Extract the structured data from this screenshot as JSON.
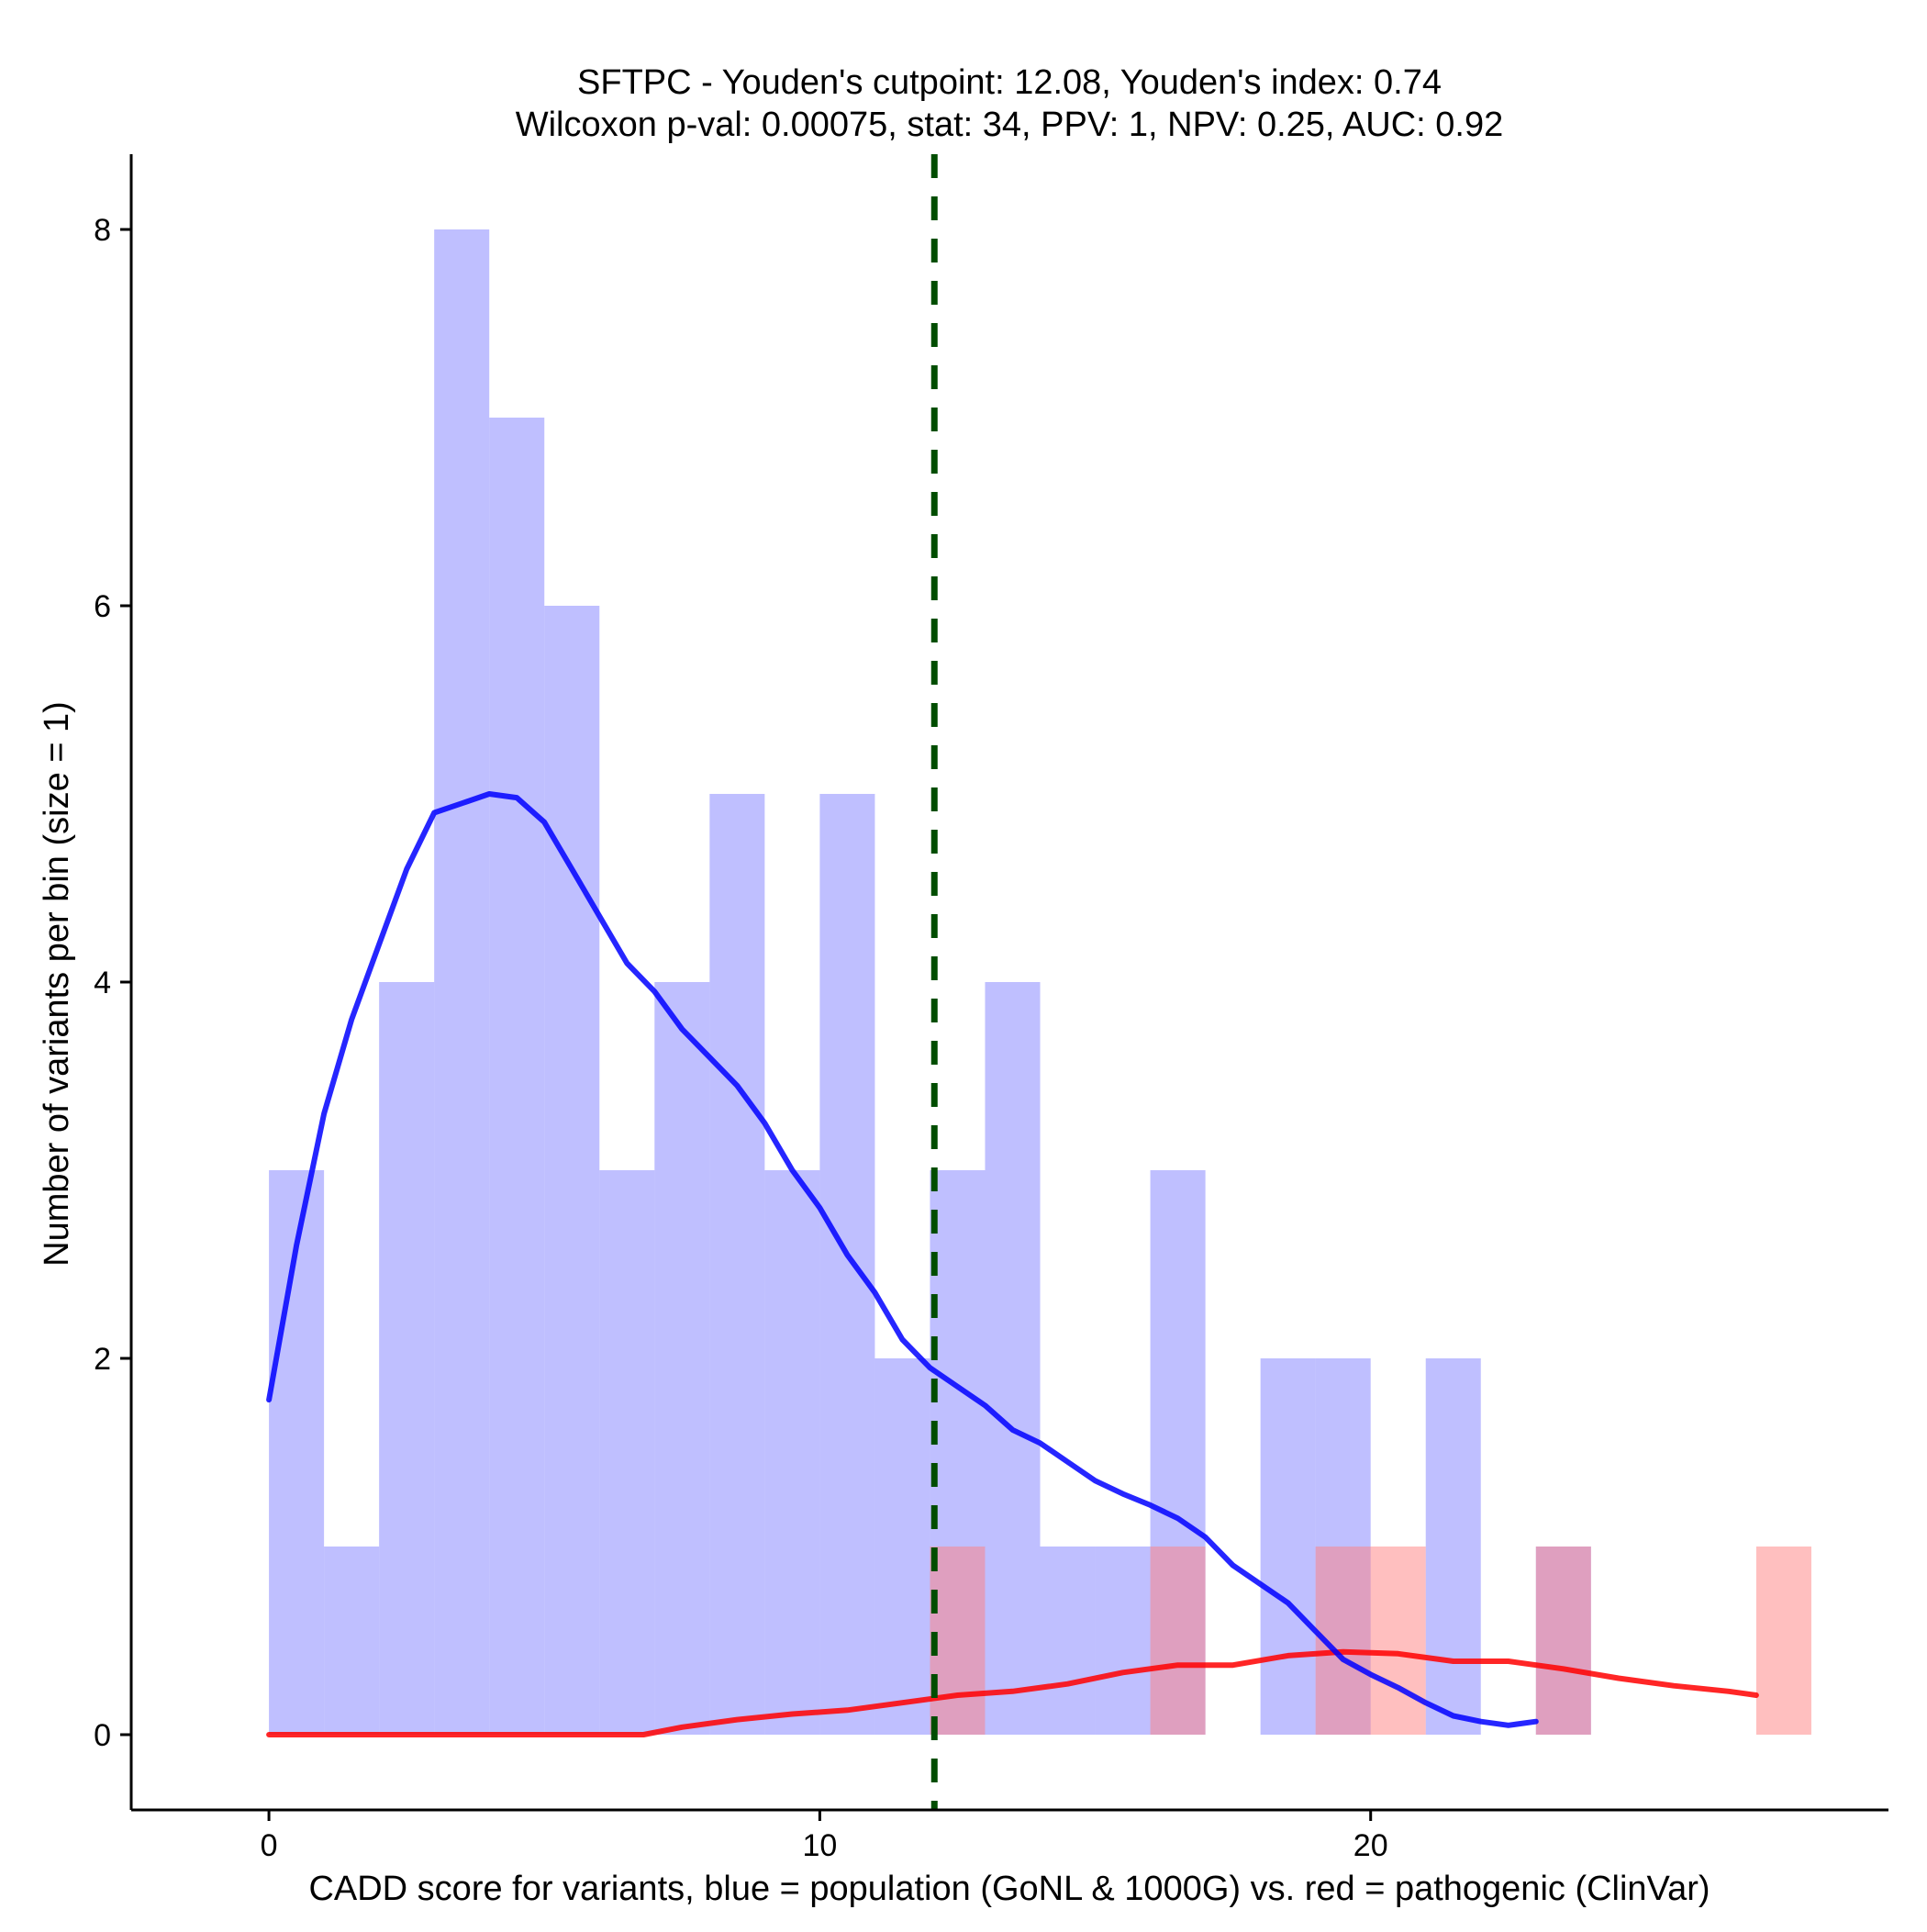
{
  "chart_data": {
    "type": "histogram",
    "title": "SFTPC - Youden's cutpoint: 12.08, Youden's index: 0.74",
    "subtitle": "Wilcoxon p-val: 0.00075, stat: 34, PPV: 1, NPV: 0.25, AUC: 0.92",
    "xlabel": "CADD score for variants, blue = population (GoNL & 1000G) vs. red = pathogenic (ClinVar)",
    "ylabel": "Number of variants per bin (size = 1)",
    "xlim": [
      -2.5,
      29.4
    ],
    "ylim": [
      -0.4,
      8.4
    ],
    "x_ticks": [
      {
        "value": 0,
        "label": "0"
      },
      {
        "value": 10,
        "label": "10"
      },
      {
        "value": 20,
        "label": "20"
      }
    ],
    "y_ticks": [
      {
        "value": 0,
        "label": "0"
      },
      {
        "value": 2,
        "label": "2"
      },
      {
        "value": 4,
        "label": "4"
      },
      {
        "value": 6,
        "label": "6"
      },
      {
        "value": 8,
        "label": "8"
      }
    ],
    "bin_width": 1,
    "series": [
      {
        "name": "population (GoNL & 1000G)",
        "color": "#8080ff",
        "bins": [
          {
            "start": 0,
            "count": 3
          },
          {
            "start": 1,
            "count": 1
          },
          {
            "start": 2,
            "count": 4
          },
          {
            "start": 3,
            "count": 8
          },
          {
            "start": 4,
            "count": 7
          },
          {
            "start": 5,
            "count": 6
          },
          {
            "start": 6,
            "count": 3
          },
          {
            "start": 7,
            "count": 4
          },
          {
            "start": 8,
            "count": 5
          },
          {
            "start": 9,
            "count": 3
          },
          {
            "start": 10,
            "count": 5
          },
          {
            "start": 11,
            "count": 2
          },
          {
            "start": 12,
            "count": 3
          },
          {
            "start": 13,
            "count": 4
          },
          {
            "start": 14,
            "count": 1
          },
          {
            "start": 15,
            "count": 1
          },
          {
            "start": 16,
            "count": 3
          },
          {
            "start": 18,
            "count": 2
          },
          {
            "start": 19,
            "count": 2
          },
          {
            "start": 21,
            "count": 2
          },
          {
            "start": 23,
            "count": 1
          }
        ],
        "density_curve": [
          [
            0,
            1.78
          ],
          [
            0.5,
            2.6
          ],
          [
            1,
            3.3
          ],
          [
            1.5,
            3.8
          ],
          [
            2,
            4.2
          ],
          [
            2.5,
            4.6
          ],
          [
            3,
            4.9
          ],
          [
            3.5,
            4.95
          ],
          [
            4,
            5.0
          ],
          [
            4.5,
            4.98
          ],
          [
            5,
            4.85
          ],
          [
            5.5,
            4.6
          ],
          [
            6,
            4.35
          ],
          [
            6.5,
            4.1
          ],
          [
            7,
            3.95
          ],
          [
            7.5,
            3.75
          ],
          [
            8,
            3.6
          ],
          [
            8.5,
            3.45
          ],
          [
            9,
            3.25
          ],
          [
            9.5,
            3.0
          ],
          [
            10,
            2.8
          ],
          [
            10.5,
            2.55
          ],
          [
            11,
            2.35
          ],
          [
            11.5,
            2.1
          ],
          [
            12,
            1.95
          ],
          [
            12.5,
            1.85
          ],
          [
            13,
            1.75
          ],
          [
            13.5,
            1.62
          ],
          [
            14,
            1.55
          ],
          [
            14.5,
            1.45
          ],
          [
            15,
            1.35
          ],
          [
            15.5,
            1.28
          ],
          [
            16,
            1.22
          ],
          [
            16.5,
            1.15
          ],
          [
            17,
            1.05
          ],
          [
            17.5,
            0.9
          ],
          [
            18,
            0.8
          ],
          [
            18.5,
            0.7
          ],
          [
            19,
            0.55
          ],
          [
            19.5,
            0.4
          ],
          [
            20,
            0.32
          ],
          [
            20.5,
            0.25
          ],
          [
            21,
            0.17
          ],
          [
            21.5,
            0.1
          ],
          [
            22,
            0.07
          ],
          [
            22.5,
            0.05
          ],
          [
            23,
            0.07
          ]
        ]
      },
      {
        "name": "pathogenic (ClinVar)",
        "color": "#ff8080",
        "bins": [
          {
            "start": 12,
            "count": 1
          },
          {
            "start": 16,
            "count": 1
          },
          {
            "start": 19,
            "count": 1
          },
          {
            "start": 20,
            "count": 1
          },
          {
            "start": 23,
            "count": 1
          },
          {
            "start": 27,
            "count": 1
          }
        ],
        "density_curve": [
          [
            0,
            0
          ],
          [
            3,
            0
          ],
          [
            6,
            0
          ],
          [
            6.8,
            0.0
          ],
          [
            7.5,
            0.04
          ],
          [
            8.5,
            0.08
          ],
          [
            9.5,
            0.11
          ],
          [
            10.5,
            0.13
          ],
          [
            11.5,
            0.17
          ],
          [
            12.5,
            0.21
          ],
          [
            13.5,
            0.23
          ],
          [
            14.5,
            0.27
          ],
          [
            15.5,
            0.33
          ],
          [
            16.5,
            0.37
          ],
          [
            17.5,
            0.37
          ],
          [
            18.5,
            0.42
          ],
          [
            19.5,
            0.44
          ],
          [
            20.5,
            0.43
          ],
          [
            21.5,
            0.39
          ],
          [
            22.5,
            0.39
          ],
          [
            23.5,
            0.35
          ],
          [
            24.5,
            0.3
          ],
          [
            25.5,
            0.26
          ],
          [
            26.5,
            0.23
          ],
          [
            27,
            0.21
          ]
        ]
      }
    ],
    "cutpoint": {
      "value": 12.08,
      "color": "#004d00",
      "style": "dashed"
    }
  }
}
